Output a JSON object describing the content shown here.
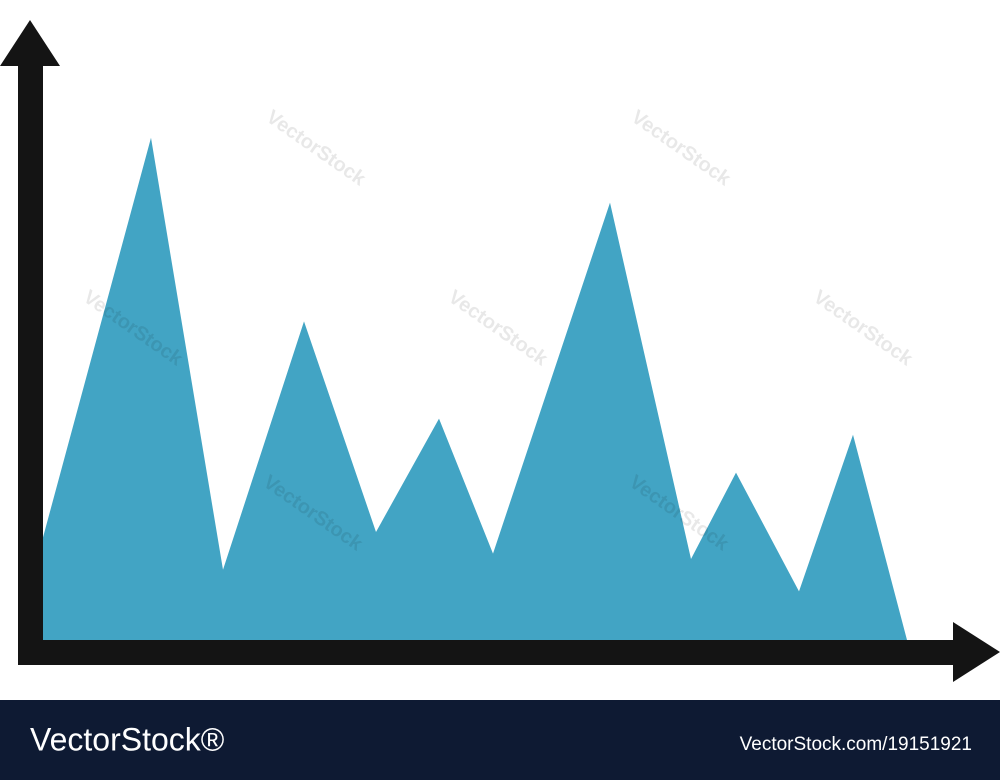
{
  "chart_data": {
    "type": "area",
    "color": "#42a4c4",
    "x": [
      0,
      12,
      20,
      29,
      37,
      44,
      50,
      63,
      72,
      77,
      84,
      90,
      96
    ],
    "values": [
      19,
      93,
      13,
      59,
      20,
      41,
      16,
      81,
      15,
      31,
      9,
      38,
      0
    ],
    "xlim": [
      0,
      100
    ],
    "ylim": [
      0,
      100
    ]
  },
  "watermark": "VectorStock",
  "footer": {
    "brand": "VectorStock®",
    "url": "VectorStock.com/19151921"
  }
}
